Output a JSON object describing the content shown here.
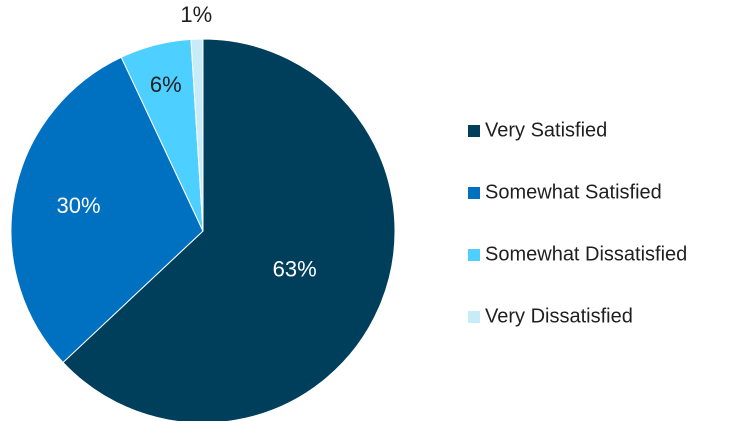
{
  "chart_data": {
    "type": "pie",
    "title": "",
    "legend_position": "right",
    "slices": [
      {
        "label": "Very Satisfied",
        "value": 63,
        "display": "63%",
        "color": "#003f5c",
        "label_color": "#ffffff"
      },
      {
        "label": "Somewhat Satisfied",
        "value": 30,
        "display": "30%",
        "color": "#0070c0",
        "label_color": "#ffffff"
      },
      {
        "label": "Somewhat Dissatisfied",
        "value": 6,
        "display": "6%",
        "color": "#4dcfff",
        "label_color": "#1f1f1f"
      },
      {
        "label": "Very Dissatisfied",
        "value": 1,
        "display": "1%",
        "color": "#c7ecf7",
        "label_color": "#1f1f1f"
      }
    ]
  }
}
